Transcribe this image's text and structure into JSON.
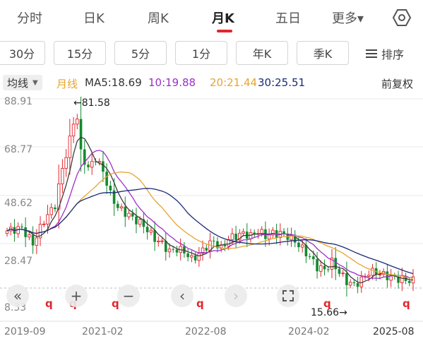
{
  "tabs": [
    "分时",
    "日K",
    "周K",
    "月K",
    "五日",
    "更多▾"
  ],
  "active_tab": "月K",
  "periods": [
    "30分",
    "15分",
    "5分",
    "1分",
    "年K",
    "季K"
  ],
  "sort_label": "排序",
  "indicator": {
    "selector": "均线",
    "line_mode": "月线",
    "ma5": "MA5:18.69",
    "ma10": "10:19.88",
    "ma20": "20:21.44",
    "ma30": "30:25.51",
    "adjust": "前复权"
  },
  "colors": {
    "up": "#e0262c",
    "down": "#138a2e",
    "ma5": "#3c3c3c",
    "ma10": "#9b30c9",
    "ma20": "#e6a52e",
    "ma30": "#1c2a78",
    "active_underline": "#e0262c"
  },
  "chart_data": {
    "type": "candlestick",
    "y_ticks": [
      "88.91",
      "68.77",
      "48.62",
      "28.47",
      "8.33"
    ],
    "x_ticks": [
      "2019-09",
      "2021-02",
      "2022-08",
      "2024-02",
      "2025-08"
    ],
    "high_annotation": "←81.58",
    "low_annotation": "15.66→",
    "high": 81.58,
    "low": 15.66,
    "ylim": [
      8.33,
      88.91
    ],
    "last_price": 18.69
  },
  "zoom_controls": [
    "rewind",
    "zoom-in",
    "zoom-out",
    "prev",
    "next",
    "fullscreen"
  ]
}
